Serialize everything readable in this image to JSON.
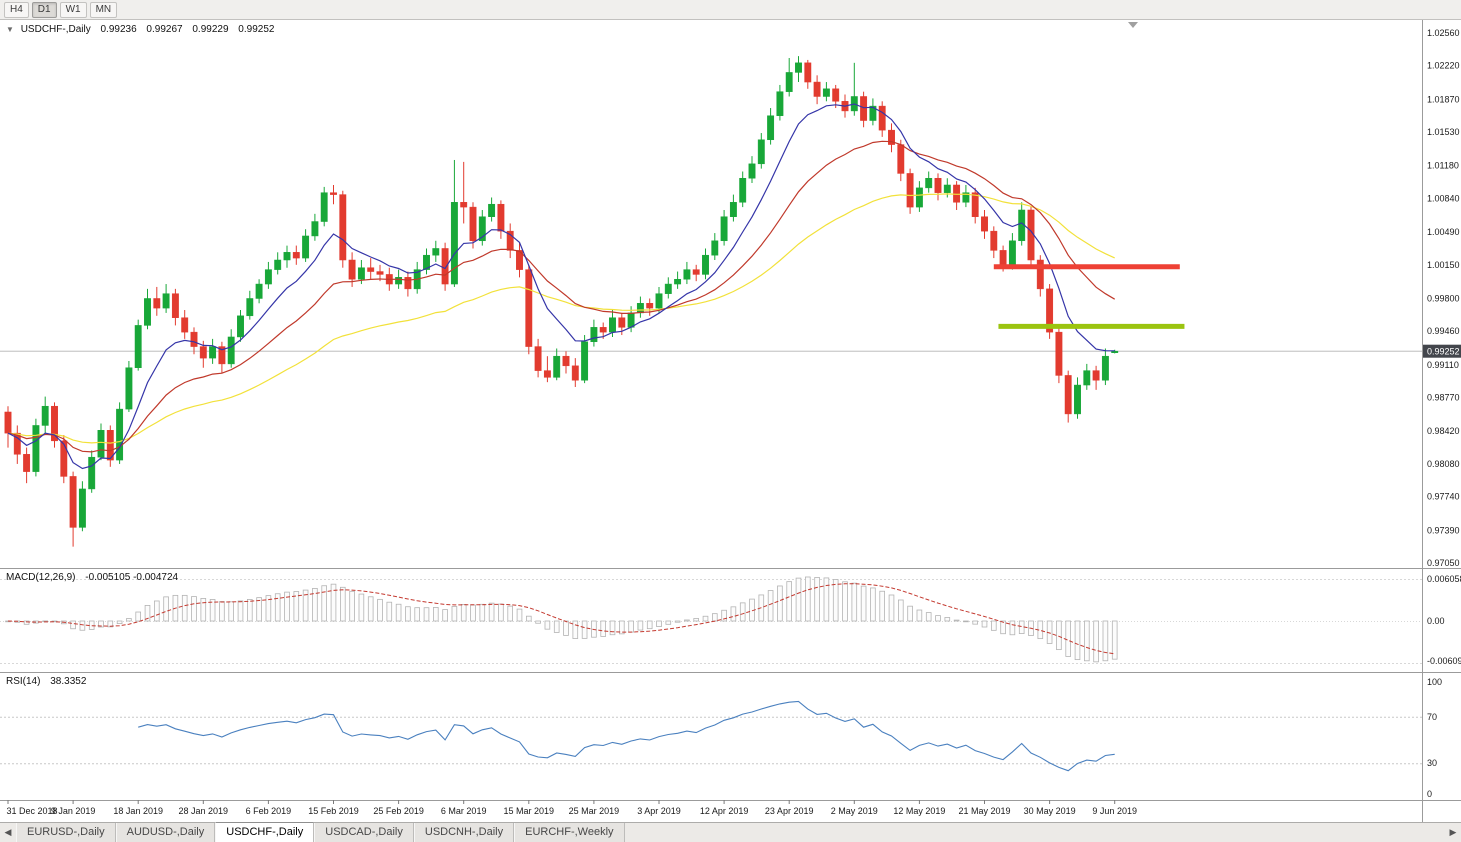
{
  "colors": {
    "bull": "#18a738",
    "bear": "#e23b2f",
    "ma_fast": "#3535a8",
    "ma_mid": "#c0392b",
    "ma_slow": "#f2e13a",
    "macd_hist_stroke": "#b3b3b3",
    "macd_hist_fill": "#fcfcfc",
    "macd_signal": "#c43a30",
    "rsi_line": "#4a80bf",
    "level_dash": "#c8c8c8",
    "price_line": "#b4b4b4",
    "price_tag_bg": "#43464c",
    "resistance": "#ee4135",
    "support": "#9bc410"
  },
  "icons": {
    "collapse_arrow": "▼",
    "tab_scroll_left": "◀",
    "tab_scroll_right": "▶"
  },
  "toolbar": {
    "timeframes": [
      {
        "label": "H4",
        "active": false
      },
      {
        "label": "D1",
        "active": true
      },
      {
        "label": "W1",
        "active": false
      },
      {
        "label": "MN",
        "active": false
      }
    ]
  },
  "chart": {
    "title": "USDCHF-,Daily",
    "quotes": {
      "open": "0.99236",
      "high": "0.99267",
      "low": "0.99229",
      "close": "0.99252"
    },
    "price_axis_labels": [
      "1.02560",
      "1.02220",
      "1.01870",
      "1.01530",
      "1.01180",
      "1.00840",
      "1.00490",
      "1.00150",
      "0.99800",
      "0.99460",
      "0.99110",
      "0.98770",
      "0.98420",
      "0.98080",
      "0.97740",
      "0.97390",
      "0.97050"
    ],
    "current_price": 0.99252,
    "current_price_label": "0.99252",
    "objects": {
      "horizontal_segments": [
        {
          "name": "resistance-line",
          "price": 1.0013,
          "from_bar": 106,
          "to_bar": 126,
          "color_key": "resistance",
          "thickness": 5
        },
        {
          "name": "support-line",
          "price": 0.9951,
          "from_bar": 106.5,
          "to_bar": 126.5,
          "color_key": "support",
          "thickness": 5
        }
      ]
    }
  },
  "macd": {
    "label": "MACD(12,26,9)",
    "values_text": "-0.005105 -0.004724",
    "axis_labels": [
      "0.006058",
      "0.00",
      "-0.006096"
    ],
    "params": {
      "fast": 12,
      "slow": 26,
      "signal": 9
    }
  },
  "rsi": {
    "label": "RSI(14)",
    "value_text": "38.3352",
    "axis_labels": [
      "100",
      "70",
      "30",
      "0"
    ],
    "levels": [
      70,
      30
    ],
    "period": 14
  },
  "time_axis": {
    "bars_per_label": 7,
    "labels": [
      "31 Dec 2018",
      "9 Jan 2019",
      "18 Jan 2019",
      "28 Jan 2019",
      "6 Feb 2019",
      "15 Feb 2019",
      "25 Feb 2019",
      "6 Mar 2019",
      "15 Mar 2019",
      "25 Mar 2019",
      "3 Apr 2019",
      "12 Apr 2019",
      "23 Apr 2019",
      "2 May 2019",
      "12 May 2019",
      "21 May 2019",
      "30 May 2019",
      "9 Jun 2019"
    ]
  },
  "tab_bar": {
    "tabs": [
      {
        "label": "EURUSD-,Daily",
        "active": false
      },
      {
        "label": "AUDUSD-,Daily",
        "active": false
      },
      {
        "label": "USDCHF-,Daily",
        "active": true
      },
      {
        "label": "USDCAD-,Daily",
        "active": false
      },
      {
        "label": "USDCNH-,Daily",
        "active": false
      },
      {
        "label": "EURCHF-,Weekly",
        "active": false
      }
    ]
  },
  "chart_data": {
    "type": "candlestick",
    "symbol": "USDCHF-",
    "timeframe": "Daily",
    "ohlc_current": {
      "open": 0.99236,
      "high": 0.99267,
      "low": 0.99229,
      "close": 0.99252
    },
    "ylim": [
      0.9705,
      1.0256
    ],
    "candles": [
      [
        0.9862,
        0.9868,
        0.9825,
        0.984
      ],
      [
        0.984,
        0.9848,
        0.9808,
        0.9818
      ],
      [
        0.9818,
        0.9825,
        0.9788,
        0.98
      ],
      [
        0.98,
        0.9855,
        0.9795,
        0.9848
      ],
      [
        0.9848,
        0.9878,
        0.984,
        0.9868
      ],
      [
        0.9868,
        0.9872,
        0.9825,
        0.9832
      ],
      [
        0.9832,
        0.9838,
        0.9788,
        0.9795
      ],
      [
        0.9795,
        0.98,
        0.9722,
        0.9742
      ],
      [
        0.9742,
        0.979,
        0.9738,
        0.9782
      ],
      [
        0.9782,
        0.9822,
        0.9778,
        0.9815
      ],
      [
        0.9815,
        0.985,
        0.9812,
        0.9843
      ],
      [
        0.9843,
        0.9848,
        0.9805,
        0.9812
      ],
      [
        0.9812,
        0.9872,
        0.9808,
        0.9865
      ],
      [
        0.9865,
        0.9915,
        0.9862,
        0.9908
      ],
      [
        0.9908,
        0.9958,
        0.9905,
        0.9952
      ],
      [
        0.9952,
        0.999,
        0.9948,
        0.998
      ],
      [
        0.998,
        0.9992,
        0.9962,
        0.997
      ],
      [
        0.997,
        0.9995,
        0.9965,
        0.9985
      ],
      [
        0.9985,
        0.999,
        0.9952,
        0.996
      ],
      [
        0.996,
        0.9968,
        0.9938,
        0.9945
      ],
      [
        0.9945,
        0.995,
        0.9922,
        0.993
      ],
      [
        0.993,
        0.9936,
        0.9908,
        0.9918
      ],
      [
        0.9918,
        0.9938,
        0.9912,
        0.993
      ],
      [
        0.993,
        0.9935,
        0.9902,
        0.9912
      ],
      [
        0.9912,
        0.9948,
        0.9908,
        0.994
      ],
      [
        0.994,
        0.9968,
        0.9935,
        0.9962
      ],
      [
        0.9962,
        0.9988,
        0.9958,
        0.998
      ],
      [
        0.998,
        1.0,
        0.9975,
        0.9995
      ],
      [
        0.9995,
        1.0018,
        0.999,
        1.001
      ],
      [
        1.001,
        1.0028,
        1.0005,
        1.002
      ],
      [
        1.002,
        1.0035,
        1.0012,
        1.0028
      ],
      [
        1.0028,
        1.0035,
        1.0015,
        1.0022
      ],
      [
        1.0022,
        1.0052,
        1.0018,
        1.0045
      ],
      [
        1.0045,
        1.0068,
        1.004,
        1.006
      ],
      [
        1.006,
        1.0096,
        1.0055,
        1.009
      ],
      [
        1.009,
        1.0098,
        1.0078,
        1.0088
      ],
      [
        1.0088,
        1.0092,
        1.0012,
        1.002
      ],
      [
        1.002,
        1.0028,
        0.9992,
        1.0
      ],
      [
        1.0,
        1.002,
        0.9995,
        1.0012
      ],
      [
        1.0012,
        1.0022,
        1.0,
        1.0008
      ],
      [
        1.0008,
        1.0015,
        0.9998,
        1.0005
      ],
      [
        1.0005,
        1.0012,
        0.9988,
        0.9995
      ],
      [
        0.9995,
        1.001,
        0.999,
        1.0002
      ],
      [
        1.0002,
        1.0008,
        0.9982,
        0.999
      ],
      [
        0.999,
        1.0018,
        0.9985,
        1.001
      ],
      [
        1.001,
        1.0032,
        1.0005,
        1.0025
      ],
      [
        1.0025,
        1.004,
        1.0018,
        1.0032
      ],
      [
        1.0032,
        1.0038,
        0.9988,
        0.9995
      ],
      [
        0.9995,
        1.0124,
        0.9992,
        1.008
      ],
      [
        1.008,
        1.0122,
        1.0058,
        1.0075
      ],
      [
        1.0075,
        1.008,
        1.0032,
        1.004
      ],
      [
        1.004,
        1.0072,
        1.0035,
        1.0065
      ],
      [
        1.0065,
        1.0085,
        1.006,
        1.0078
      ],
      [
        1.0078,
        1.0082,
        1.0042,
        1.005
      ],
      [
        1.005,
        1.0058,
        1.0022,
        1.003
      ],
      [
        1.003,
        1.0038,
        1.0002,
        1.001
      ],
      [
        1.001,
        1.0015,
        0.9922,
        0.993
      ],
      [
        0.993,
        0.9938,
        0.9898,
        0.9905
      ],
      [
        0.9905,
        0.992,
        0.9893,
        0.9898
      ],
      [
        0.9898,
        0.9928,
        0.9895,
        0.992
      ],
      [
        0.992,
        0.9925,
        0.9902,
        0.991
      ],
      [
        0.991,
        0.9918,
        0.9888,
        0.9895
      ],
      [
        0.9895,
        0.9942,
        0.9892,
        0.9935
      ],
      [
        0.9935,
        0.9958,
        0.993,
        0.995
      ],
      [
        0.995,
        0.9955,
        0.9938,
        0.9945
      ],
      [
        0.9945,
        0.9968,
        0.994,
        0.996
      ],
      [
        0.996,
        0.9965,
        0.9942,
        0.995
      ],
      [
        0.995,
        0.9972,
        0.9945,
        0.9965
      ],
      [
        0.9965,
        0.9982,
        0.996,
        0.9975
      ],
      [
        0.9975,
        0.998,
        0.9962,
        0.997
      ],
      [
        0.997,
        0.9992,
        0.9965,
        0.9985
      ],
      [
        0.9985,
        1.0002,
        0.998,
        0.9995
      ],
      [
        0.9995,
        1.0008,
        0.999,
        1.0
      ],
      [
        1.0,
        1.0018,
        0.9995,
        1.001
      ],
      [
        1.001,
        1.0015,
        0.9998,
        1.0005
      ],
      [
        1.0005,
        1.0032,
        1.0,
        1.0025
      ],
      [
        1.0025,
        1.0048,
        1.002,
        1.004
      ],
      [
        1.004,
        1.0072,
        1.0035,
        1.0065
      ],
      [
        1.0065,
        1.0088,
        1.006,
        1.008
      ],
      [
        1.008,
        1.0112,
        1.0075,
        1.0105
      ],
      [
        1.0105,
        1.0128,
        1.01,
        1.012
      ],
      [
        1.012,
        1.0152,
        1.0115,
        1.0145
      ],
      [
        1.0145,
        1.0178,
        1.014,
        1.017
      ],
      [
        1.017,
        1.0202,
        1.0165,
        1.0195
      ],
      [
        1.0195,
        1.023,
        1.019,
        1.0215
      ],
      [
        1.0215,
        1.0232,
        1.0205,
        1.0225
      ],
      [
        1.0225,
        1.0228,
        1.0198,
        1.0205
      ],
      [
        1.0205,
        1.0212,
        1.0182,
        1.019
      ],
      [
        1.019,
        1.0205,
        1.0185,
        1.0198
      ],
      [
        1.0198,
        1.0202,
        1.0178,
        1.0185
      ],
      [
        1.0185,
        1.0192,
        1.0168,
        1.0175
      ],
      [
        1.0175,
        1.0225,
        1.017,
        1.019
      ],
      [
        1.019,
        1.0195,
        1.0158,
        1.0165
      ],
      [
        1.0165,
        1.0188,
        1.016,
        1.018
      ],
      [
        1.018,
        1.0185,
        1.0148,
        1.0155
      ],
      [
        1.0155,
        1.0162,
        1.0132,
        1.014
      ],
      [
        1.014,
        1.0145,
        1.0102,
        1.011
      ],
      [
        1.011,
        1.0115,
        1.0068,
        1.0075
      ],
      [
        1.0075,
        1.0102,
        1.007,
        1.0095
      ],
      [
        1.0095,
        1.0112,
        1.009,
        1.0105
      ],
      [
        1.0105,
        1.011,
        1.0082,
        1.009
      ],
      [
        1.009,
        1.0105,
        1.0085,
        1.0098
      ],
      [
        1.0098,
        1.0102,
        1.0072,
        1.008
      ],
      [
        1.008,
        1.0098,
        1.0075,
        1.009
      ],
      [
        1.009,
        1.0095,
        1.0058,
        1.0065
      ],
      [
        1.0065,
        1.0072,
        1.0042,
        1.005
      ],
      [
        1.005,
        1.0055,
        1.0022,
        1.003
      ],
      [
        1.003,
        1.0035,
        1.0008,
        1.0015
      ],
      [
        1.0015,
        1.0048,
        1.001,
        1.004
      ],
      [
        1.004,
        1.008,
        1.0035,
        1.0072
      ],
      [
        1.0072,
        1.0076,
        1.0012,
        1.002
      ],
      [
        1.002,
        1.0025,
        0.9982,
        0.999
      ],
      [
        0.999,
        0.9995,
        0.9938,
        0.9945
      ],
      [
        0.9945,
        0.995,
        0.9892,
        0.99
      ],
      [
        0.99,
        0.9905,
        0.9851,
        0.986
      ],
      [
        0.986,
        0.9898,
        0.9855,
        0.989
      ],
      [
        0.989,
        0.9912,
        0.9885,
        0.9905
      ],
      [
        0.9905,
        0.991,
        0.9885,
        0.9895
      ],
      [
        0.9895,
        0.9928,
        0.989,
        0.992
      ],
      [
        0.99236,
        0.99267,
        0.99229,
        0.99252
      ]
    ]
  }
}
